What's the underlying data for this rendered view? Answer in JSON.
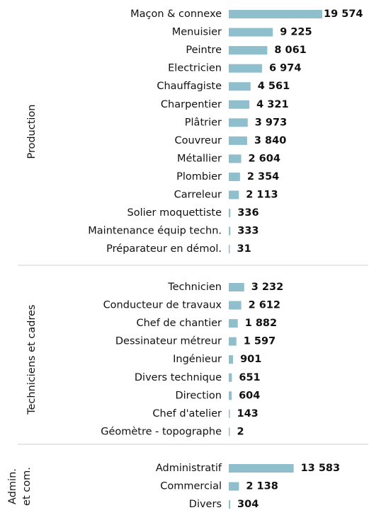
{
  "chart_data": {
    "type": "bar",
    "color": "#8fbfcc",
    "groups": [
      {
        "label": [
          "Production"
        ],
        "categories": [
          "Maçon & connexe",
          "Menuisier",
          "Peintre",
          "Electricien",
          "Chauffagiste",
          "Charpentier",
          "Plâtrier",
          "Couvreur",
          "Métallier",
          "Plombier",
          "Carreleur",
          "Solier moquettiste",
          "Maintenance équip techn.",
          "Préparateur en démol."
        ],
        "values": [
          19574,
          9225,
          8061,
          6974,
          4561,
          4321,
          3973,
          3840,
          2604,
          2354,
          2113,
          336,
          333,
          31
        ],
        "value_labels": [
          "19 574",
          "9 225",
          "8 061",
          "6 974",
          "4 561",
          "4 321",
          "3 973",
          "3 840",
          "2 604",
          "2 354",
          "2 113",
          "336",
          "333",
          "31"
        ]
      },
      {
        "label": [
          "Techniciens et cadres"
        ],
        "categories": [
          "Technicien",
          "Conducteur de travaux",
          "Chef de chantier",
          "Dessinateur métreur",
          "Ingénieur",
          "Divers technique",
          "Direction",
          "Chef d'atelier",
          "Géomètre - topographe"
        ],
        "values": [
          3232,
          2612,
          1882,
          1597,
          901,
          651,
          604,
          143,
          2
        ],
        "value_labels": [
          "3 232",
          "2 612",
          "1 882",
          "1 597",
          "901",
          "651",
          "604",
          "143",
          "2"
        ]
      },
      {
        "label": [
          "Admin.",
          "et com."
        ],
        "categories": [
          "Administratif",
          "Commercial",
          "Divers"
        ],
        "values": [
          13583,
          2138,
          304
        ],
        "value_labels": [
          "13 583",
          "2 138",
          "304"
        ]
      }
    ]
  }
}
